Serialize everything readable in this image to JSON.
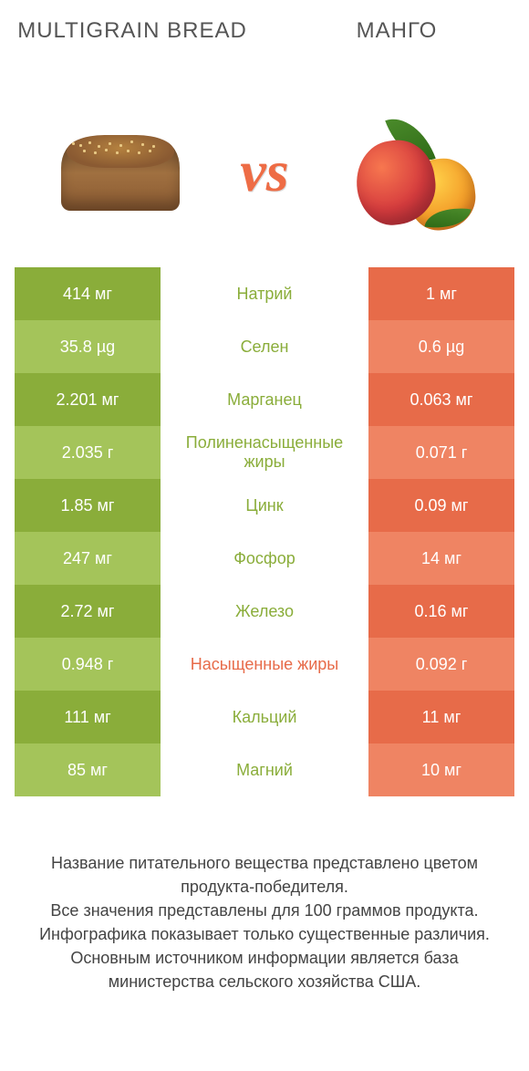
{
  "colors": {
    "green_dark": "#8aad3a",
    "green_light": "#a4c45a",
    "orange_dark": "#e76b49",
    "orange_light": "#ef8463",
    "vs_color": "#ee6c45"
  },
  "header": {
    "left": "Multigrain bread",
    "right": "Mанго",
    "vs": "vs"
  },
  "rows": [
    {
      "label": "Натрий",
      "left": "414 мг",
      "right": "1 мг",
      "winner": "left"
    },
    {
      "label": "Селен",
      "left": "35.8 µg",
      "right": "0.6 µg",
      "winner": "left"
    },
    {
      "label": "Марганец",
      "left": "2.201 мг",
      "right": "0.063 мг",
      "winner": "left"
    },
    {
      "label": "Полиненасыщенные жиры",
      "left": "2.035 г",
      "right": "0.071 г",
      "winner": "left"
    },
    {
      "label": "Цинк",
      "left": "1.85 мг",
      "right": "0.09 мг",
      "winner": "left"
    },
    {
      "label": "Фосфор",
      "left": "247 мг",
      "right": "14 мг",
      "winner": "left"
    },
    {
      "label": "Железо",
      "left": "2.72 мг",
      "right": "0.16 мг",
      "winner": "left"
    },
    {
      "label": "Насыщенные жиры",
      "left": "0.948 г",
      "right": "0.092 г",
      "winner": "right"
    },
    {
      "label": "Кальций",
      "left": "111 мг",
      "right": "11 мг",
      "winner": "left"
    },
    {
      "label": "Магний",
      "left": "85 мг",
      "right": "10 мг",
      "winner": "left"
    }
  ],
  "footnote": {
    "l1": "Название питательного вещества представлено цветом продукта-победителя.",
    "l2": "Все значения представлены для 100 граммов продукта.",
    "l3": "Инфографика показывает только существенные различия.",
    "l4": "Основным источником информации является база министерства сельского хозяйства США."
  }
}
